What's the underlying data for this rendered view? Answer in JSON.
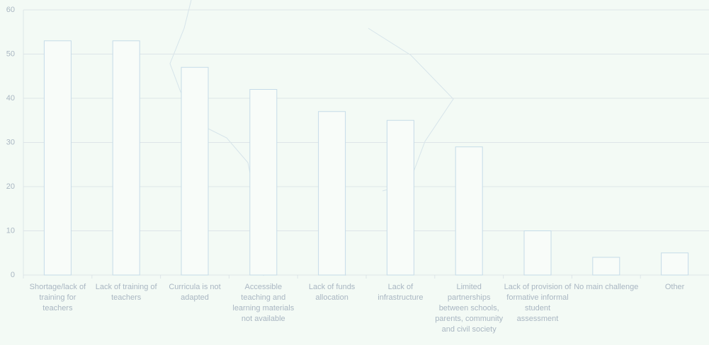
{
  "chart_data": {
    "type": "bar",
    "categories": [
      "Shortage/lack of training for teachers",
      "Lack of training of teachers",
      "Curricula is not adapted",
      "Accessible teaching and learning materials not available",
      "Lack of funds allocation",
      "Lack of infrastructure",
      "Limited partnerships between schools, parents, community and civil society",
      "Lack of provision of formative informal student assessment",
      "No main challenge",
      "Other"
    ],
    "values": [
      53,
      53,
      47,
      42,
      37,
      35,
      29,
      10,
      4,
      5
    ],
    "color": "#f8fcf9",
    "edge_color": "#c5dbe8",
    "ylim": [
      0,
      60
    ],
    "yticks": [
      0,
      10,
      20,
      30,
      40,
      50,
      60
    ],
    "grid": true
  }
}
